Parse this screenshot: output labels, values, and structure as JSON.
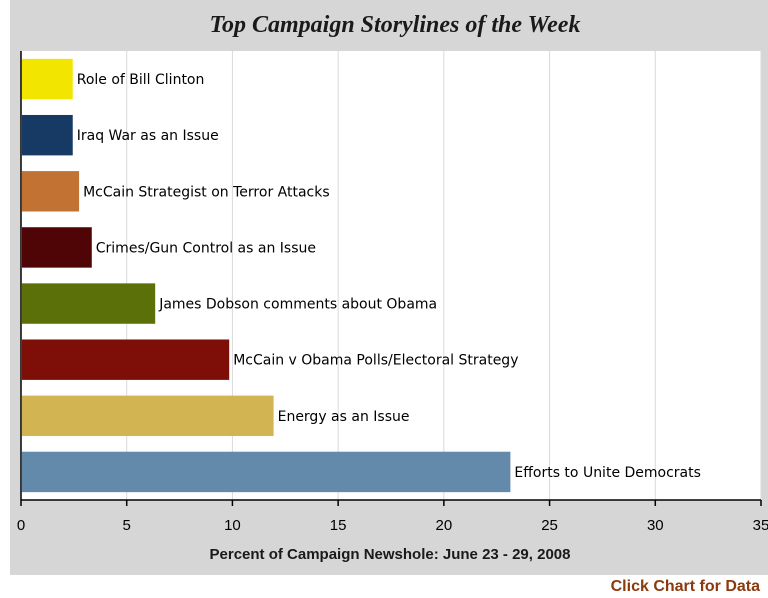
{
  "chart_data": {
    "type": "bar",
    "orientation": "horizontal",
    "title": "Top Campaign Storylines of the Week",
    "xlabel": "Percent of Campaign Newshole: June 23 - 29, 2008",
    "ylabel": "",
    "xlim": [
      0,
      35
    ],
    "xticks": [
      0,
      5,
      10,
      15,
      20,
      25,
      30,
      35
    ],
    "grid": true,
    "legend": "none",
    "categories": [
      "Role of Bill Clinton",
      "Iraq War as an Issue",
      "McCain Strategist on Terror Attacks",
      "Crimes/Gun Control as an Issue",
      "James Dobson comments about Obama",
      "McCain v Obama Polls/Electoral Strategy",
      "Energy as an Issue",
      "Efforts to Unite Democrats"
    ],
    "values": [
      2.4,
      2.4,
      2.7,
      3.3,
      6.3,
      9.8,
      11.9,
      23.1
    ],
    "colors": [
      "#f2e600",
      "#163a63",
      "#c27232",
      "#4f0505",
      "#5c7009",
      "#7e0f08",
      "#d3b452",
      "#6389ab"
    ]
  },
  "footer": {
    "link_label": "Click Chart for Data",
    "link_color": "#8b3a0e"
  }
}
